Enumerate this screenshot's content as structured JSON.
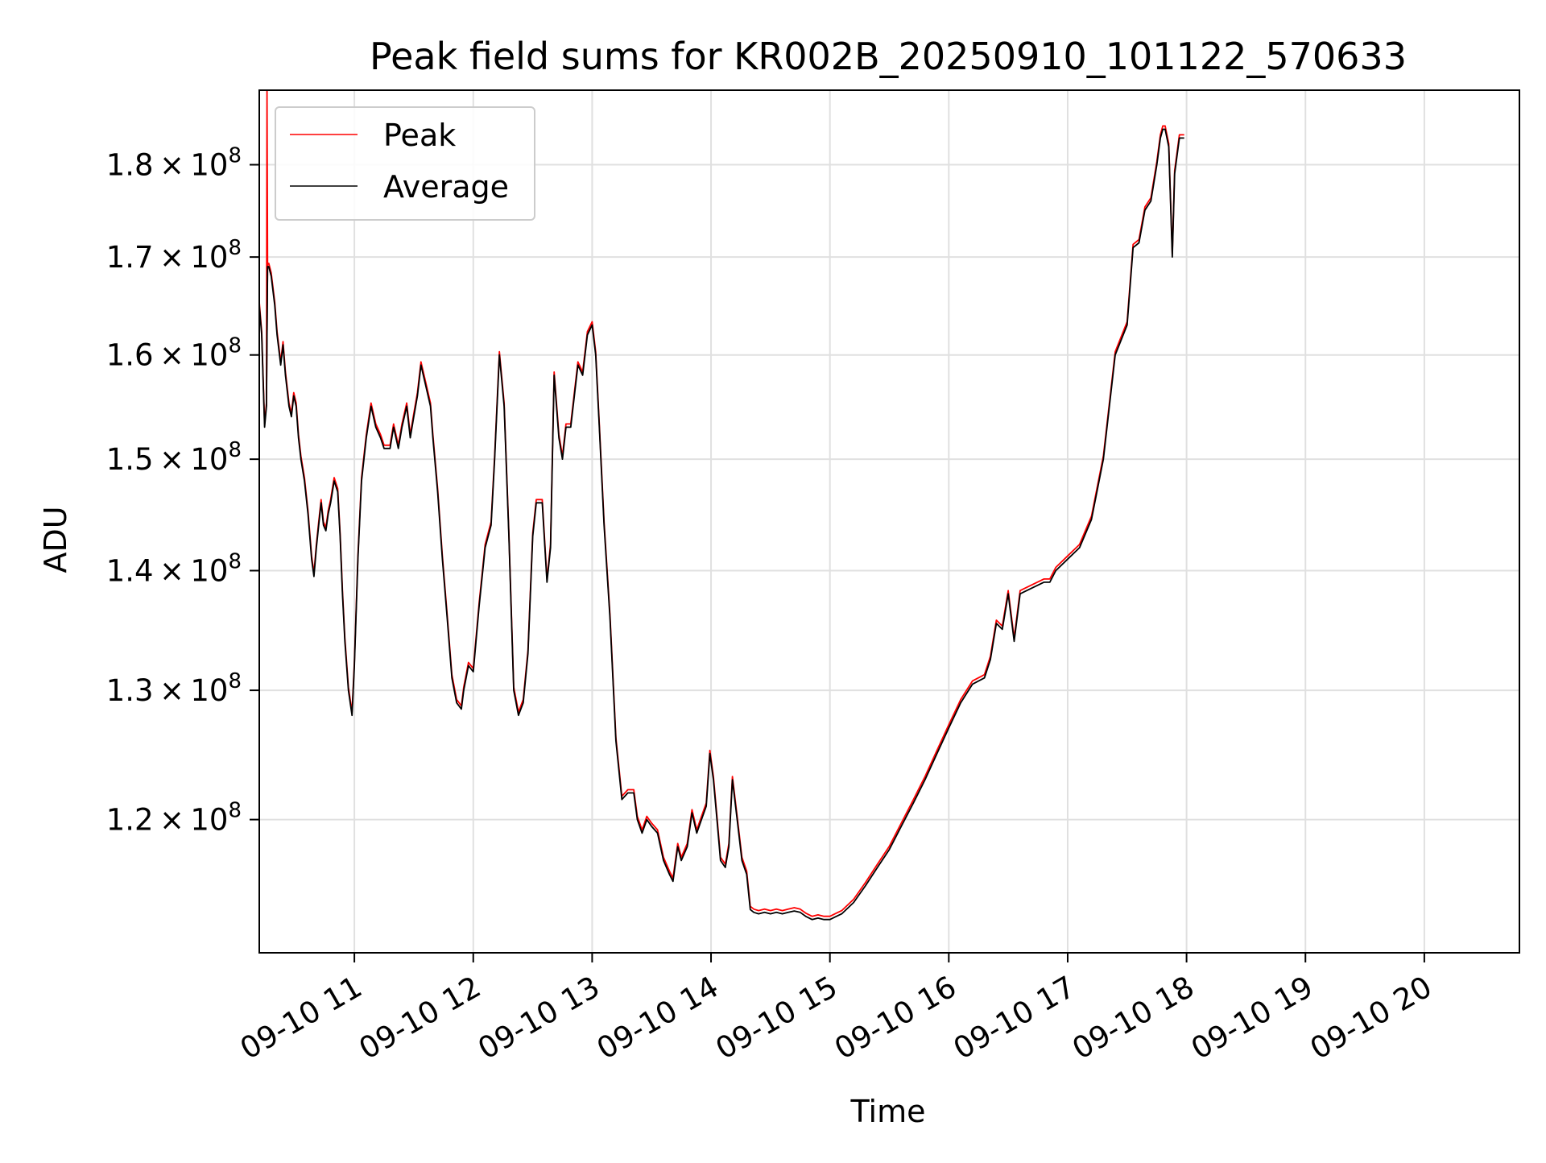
{
  "chart_data": {
    "type": "line",
    "title": "Peak field sums for KR002B_20250910_101122_570633",
    "xlabel": "Time",
    "ylabel": "ADU",
    "x_unit": "hours",
    "xlim": [
      10.2,
      20.8
    ],
    "ylim": [
      110500000.0,
      188500000.0
    ],
    "y_scale": "log",
    "grid": true,
    "legend_position": "top-left",
    "x_ticks": [
      {
        "value": 11,
        "label": "09-10 11"
      },
      {
        "value": 12,
        "label": "09-10 12"
      },
      {
        "value": 13,
        "label": "09-10 13"
      },
      {
        "value": 14,
        "label": "09-10 14"
      },
      {
        "value": 15,
        "label": "09-10 15"
      },
      {
        "value": 16,
        "label": "09-10 16"
      },
      {
        "value": 17,
        "label": "09-10 17"
      },
      {
        "value": 18,
        "label": "09-10 18"
      },
      {
        "value": 19,
        "label": "09-10 19"
      },
      {
        "value": 20,
        "label": "09-10 20"
      }
    ],
    "y_ticks": [
      {
        "value": 120000000.0,
        "mantissa": "1.2",
        "exponent": "8"
      },
      {
        "value": 130000000.0,
        "mantissa": "1.3",
        "exponent": "8"
      },
      {
        "value": 140000000.0,
        "mantissa": "1.4",
        "exponent": "8"
      },
      {
        "value": 150000000.0,
        "mantissa": "1.5",
        "exponent": "8"
      },
      {
        "value": 160000000.0,
        "mantissa": "1.6",
        "exponent": "8"
      },
      {
        "value": 170000000.0,
        "mantissa": "1.7",
        "exponent": "8"
      },
      {
        "value": 180000000.0,
        "mantissa": "1.8",
        "exponent": "8"
      }
    ],
    "series": [
      {
        "name": "Peak",
        "color": "#ff0000",
        "offset": 0.002,
        "spike": {
          "x": 10.265,
          "y": 188500000.0
        }
      },
      {
        "name": "Average",
        "color": "#000000",
        "offset": 0
      }
    ],
    "points": [
      [
        10.2,
        1.65
      ],
      [
        10.22,
        1.62
      ],
      [
        10.245,
        1.53
      ],
      [
        10.26,
        1.55
      ],
      [
        10.27,
        1.69
      ],
      [
        10.28,
        1.69
      ],
      [
        10.3,
        1.68
      ],
      [
        10.33,
        1.65
      ],
      [
        10.35,
        1.62
      ],
      [
        10.37,
        1.6
      ],
      [
        10.38,
        1.59
      ],
      [
        10.4,
        1.61
      ],
      [
        10.42,
        1.58
      ],
      [
        10.45,
        1.55
      ],
      [
        10.47,
        1.54
      ],
      [
        10.49,
        1.56
      ],
      [
        10.51,
        1.55
      ],
      [
        10.53,
        1.52
      ],
      [
        10.55,
        1.5
      ],
      [
        10.58,
        1.48
      ],
      [
        10.61,
        1.45
      ],
      [
        10.64,
        1.41
      ],
      [
        10.66,
        1.395
      ],
      [
        10.68,
        1.42
      ],
      [
        10.7,
        1.44
      ],
      [
        10.72,
        1.46
      ],
      [
        10.74,
        1.44
      ],
      [
        10.76,
        1.435
      ],
      [
        10.78,
        1.45
      ],
      [
        10.8,
        1.46
      ],
      [
        10.83,
        1.48
      ],
      [
        10.86,
        1.47
      ],
      [
        10.88,
        1.43
      ],
      [
        10.9,
        1.38
      ],
      [
        10.92,
        1.34
      ],
      [
        10.95,
        1.3
      ],
      [
        10.98,
        1.28
      ],
      [
        11.0,
        1.32
      ],
      [
        11.03,
        1.41
      ],
      [
        11.06,
        1.48
      ],
      [
        11.1,
        1.52
      ],
      [
        11.14,
        1.55
      ],
      [
        11.18,
        1.53
      ],
      [
        11.22,
        1.52
      ],
      [
        11.25,
        1.51
      ],
      [
        11.3,
        1.51
      ],
      [
        11.33,
        1.53
      ],
      [
        11.37,
        1.51
      ],
      [
        11.4,
        1.53
      ],
      [
        11.44,
        1.55
      ],
      [
        11.47,
        1.52
      ],
      [
        11.5,
        1.54
      ],
      [
        11.53,
        1.56
      ],
      [
        11.56,
        1.59
      ],
      [
        11.6,
        1.57
      ],
      [
        11.64,
        1.55
      ],
      [
        11.66,
        1.52
      ],
      [
        11.7,
        1.47
      ],
      [
        11.74,
        1.41
      ],
      [
        11.78,
        1.36
      ],
      [
        11.82,
        1.31
      ],
      [
        11.86,
        1.29
      ],
      [
        11.9,
        1.285
      ],
      [
        11.92,
        1.3
      ],
      [
        11.96,
        1.32
      ],
      [
        12.0,
        1.315
      ],
      [
        12.05,
        1.37
      ],
      [
        12.1,
        1.42
      ],
      [
        12.15,
        1.44
      ],
      [
        12.18,
        1.5
      ],
      [
        12.22,
        1.6
      ],
      [
        12.26,
        1.55
      ],
      [
        12.3,
        1.43
      ],
      [
        12.34,
        1.3
      ],
      [
        12.38,
        1.28
      ],
      [
        12.42,
        1.29
      ],
      [
        12.46,
        1.33
      ],
      [
        12.5,
        1.43
      ],
      [
        12.53,
        1.46
      ],
      [
        12.58,
        1.46
      ],
      [
        12.62,
        1.39
      ],
      [
        12.65,
        1.42
      ],
      [
        12.68,
        1.58
      ],
      [
        12.72,
        1.52
      ],
      [
        12.75,
        1.5
      ],
      [
        12.78,
        1.53
      ],
      [
        12.82,
        1.53
      ],
      [
        12.85,
        1.56
      ],
      [
        12.88,
        1.59
      ],
      [
        12.92,
        1.58
      ],
      [
        12.96,
        1.62
      ],
      [
        13.0,
        1.63
      ],
      [
        13.03,
        1.6
      ],
      [
        13.06,
        1.53
      ],
      [
        13.1,
        1.44
      ],
      [
        13.15,
        1.36
      ],
      [
        13.2,
        1.26
      ],
      [
        13.25,
        1.215
      ],
      [
        13.3,
        1.22
      ],
      [
        13.35,
        1.22
      ],
      [
        13.38,
        1.2
      ],
      [
        13.42,
        1.19
      ],
      [
        13.46,
        1.2
      ],
      [
        13.5,
        1.195
      ],
      [
        13.55,
        1.19
      ],
      [
        13.6,
        1.17
      ],
      [
        13.65,
        1.16
      ],
      [
        13.68,
        1.155
      ],
      [
        13.72,
        1.18
      ],
      [
        13.75,
        1.17
      ],
      [
        13.8,
        1.18
      ],
      [
        13.84,
        1.205
      ],
      [
        13.88,
        1.19
      ],
      [
        13.92,
        1.2
      ],
      [
        13.96,
        1.21
      ],
      [
        13.99,
        1.25
      ],
      [
        14.02,
        1.23
      ],
      [
        14.05,
        1.2
      ],
      [
        14.08,
        1.17
      ],
      [
        14.12,
        1.165
      ],
      [
        14.15,
        1.18
      ],
      [
        14.18,
        1.23
      ],
      [
        14.22,
        1.2
      ],
      [
        14.26,
        1.17
      ],
      [
        14.3,
        1.16
      ],
      [
        14.33,
        1.135
      ],
      [
        14.36,
        1.133
      ],
      [
        14.4,
        1.132
      ],
      [
        14.45,
        1.133
      ],
      [
        14.5,
        1.132
      ],
      [
        14.55,
        1.133
      ],
      [
        14.6,
        1.132
      ],
      [
        14.65,
        1.133
      ],
      [
        14.7,
        1.134
      ],
      [
        14.75,
        1.133
      ],
      [
        14.8,
        1.13
      ],
      [
        14.85,
        1.128
      ],
      [
        14.9,
        1.129
      ],
      [
        14.95,
        1.128
      ],
      [
        15.0,
        1.128
      ],
      [
        15.05,
        1.13
      ],
      [
        15.1,
        1.132
      ],
      [
        15.2,
        1.14
      ],
      [
        15.3,
        1.152
      ],
      [
        15.4,
        1.165
      ],
      [
        15.5,
        1.178
      ],
      [
        15.6,
        1.195
      ],
      [
        15.7,
        1.212
      ],
      [
        15.8,
        1.23
      ],
      [
        15.9,
        1.25
      ],
      [
        16.0,
        1.27
      ],
      [
        16.1,
        1.29
      ],
      [
        16.2,
        1.305
      ],
      [
        16.3,
        1.31
      ],
      [
        16.35,
        1.325
      ],
      [
        16.4,
        1.355
      ],
      [
        16.45,
        1.35
      ],
      [
        16.5,
        1.38
      ],
      [
        16.55,
        1.34
      ],
      [
        16.6,
        1.38
      ],
      [
        16.7,
        1.385
      ],
      [
        16.8,
        1.39
      ],
      [
        16.85,
        1.39
      ],
      [
        16.9,
        1.4
      ],
      [
        17.0,
        1.41
      ],
      [
        17.1,
        1.42
      ],
      [
        17.2,
        1.445
      ],
      [
        17.3,
        1.5
      ],
      [
        17.4,
        1.6
      ],
      [
        17.5,
        1.63
      ],
      [
        17.55,
        1.71
      ],
      [
        17.6,
        1.715
      ],
      [
        17.65,
        1.75
      ],
      [
        17.7,
        1.76
      ],
      [
        17.75,
        1.8
      ],
      [
        17.78,
        1.83
      ],
      [
        17.8,
        1.84
      ],
      [
        17.82,
        1.84
      ],
      [
        17.85,
        1.82
      ],
      [
        17.88,
        1.7
      ],
      [
        17.9,
        1.79
      ],
      [
        17.94,
        1.83
      ],
      [
        17.98,
        1.83
      ]
    ]
  }
}
